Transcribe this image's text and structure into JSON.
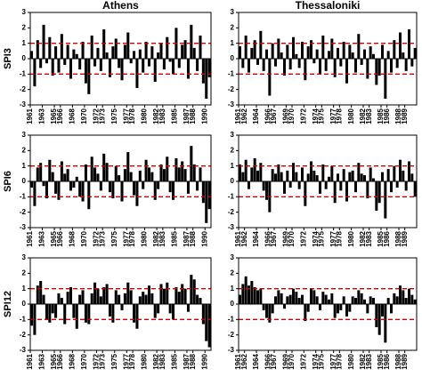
{
  "chart_data": [
    {
      "type": "bar",
      "title": "Athens",
      "ylabel": "SPI3",
      "color": "#000000",
      "thresholds": [
        1,
        -1
      ],
      "threshold_color": "#cc0000",
      "xlim": [
        1961,
        1991
      ],
      "ylim": [
        -3,
        3
      ],
      "yticks": [
        -3,
        -2,
        -1,
        0,
        1,
        2,
        3
      ],
      "xticks": [
        1961,
        1963,
        1965,
        1966,
        1968,
        1970,
        1972,
        1973,
        1975,
        1977,
        1978,
        1980,
        1982,
        1983,
        1985,
        1987,
        1988,
        1990
      ],
      "x": [
        1961,
        1961.5,
        1962,
        1962.5,
        1963,
        1963.5,
        1964,
        1964.5,
        1965,
        1965.5,
        1966,
        1966.5,
        1967,
        1967.5,
        1968,
        1968.5,
        1969,
        1969.5,
        1970,
        1970.5,
        1971,
        1971.5,
        1972,
        1972.5,
        1973,
        1973.5,
        1974,
        1974.5,
        1975,
        1975.5,
        1976,
        1976.5,
        1977,
        1977.5,
        1978,
        1978.5,
        1979,
        1979.5,
        1980,
        1980.5,
        1981,
        1981.5,
        1982,
        1982.5,
        1983,
        1983.5,
        1984,
        1984.5,
        1985,
        1985.5,
        1986,
        1986.5,
        1987,
        1987.5,
        1988,
        1988.5,
        1989,
        1989.5,
        1990,
        1990.5
      ],
      "values": [
        0.5,
        -1.8,
        1.2,
        -0.6,
        2.2,
        -0.3,
        1.4,
        -1.1,
        0.8,
        -0.9,
        1.6,
        -0.4,
        0.9,
        -1.3,
        0.6,
        0.3,
        -0.7,
        1.1,
        -1.6,
        -2.3,
        1.5,
        -0.5,
        0.7,
        -0.8,
        1.9,
        0.4,
        -1.2,
        0.8,
        1.3,
        -0.6,
        -1.4,
        0.9,
        1.7,
        -0.3,
        0.5,
        -1.9,
        0.6,
        -0.9,
        1.1,
        -0.5,
        0.8,
        -1.5,
        0.4,
        1.0,
        -0.7,
        1.4,
        -0.2,
        -1.0,
        2.0,
        -0.6,
        0.9,
        1.2,
        -1.3,
        2.2,
        0.7,
        -0.8,
        1.5,
        -1.6,
        -2.6,
        -1.2
      ]
    },
    {
      "type": "bar",
      "title": "Thessaloniki",
      "color": "#000000",
      "thresholds": [
        1,
        -1
      ],
      "threshold_color": "#cc0000",
      "xlim": [
        1961,
        1991
      ],
      "ylim": [
        -3,
        3
      ],
      "yticks": [
        -3,
        -2,
        -1,
        0,
        1,
        2,
        3
      ],
      "xticks": [
        1961,
        1962,
        1964,
        1966,
        1967,
        1969,
        1970,
        1972,
        1974,
        1975,
        1977,
        1978,
        1980,
        1982,
        1983,
        1985,
        1986,
        1988,
        1989
      ],
      "x": [
        1961,
        1961.5,
        1962,
        1962.5,
        1963,
        1963.5,
        1964,
        1964.5,
        1965,
        1965.5,
        1966,
        1966.5,
        1967,
        1967.5,
        1968,
        1968.5,
        1969,
        1969.5,
        1970,
        1970.5,
        1971,
        1971.5,
        1972,
        1972.5,
        1973,
        1973.5,
        1974,
        1974.5,
        1975,
        1975.5,
        1976,
        1976.5,
        1977,
        1977.5,
        1978,
        1978.5,
        1979,
        1979.5,
        1980,
        1980.5,
        1981,
        1981.5,
        1982,
        1982.5,
        1983,
        1983.5,
        1984,
        1984.5,
        1985,
        1985.5,
        1986,
        1986.5,
        1987,
        1987.5,
        1988,
        1988.5,
        1989,
        1989.5,
        1990,
        1990.5
      ],
      "values": [
        0.8,
        -0.6,
        1.5,
        -0.9,
        0.7,
        1.2,
        -0.4,
        1.8,
        -0.8,
        0.6,
        -2.4,
        1.0,
        -0.5,
        1.3,
        0.4,
        -1.1,
        0.9,
        -0.7,
        1.4,
        0.3,
        -0.6,
        1.1,
        -1.4,
        0.8,
        1.2,
        -0.3,
        0.6,
        -1.0,
        1.5,
        -0.8,
        0.5,
        1.3,
        -1.2,
        0.7,
        -0.5,
        1.1,
        -1.6,
        0.9,
        0.4,
        -0.9,
        1.6,
        -0.4,
        0.6,
        -1.3,
        0.8,
        0.3,
        -1.7,
        -1.1,
        0.9,
        -2.6,
        0.5,
        -0.9,
        1.2,
        -0.6,
        1.7,
        0.4,
        -0.8,
        1.9,
        -0.5,
        0.7
      ]
    },
    {
      "type": "bar",
      "ylabel": "SPI6",
      "color": "#000000",
      "thresholds": [
        1,
        -1
      ],
      "threshold_color": "#cc0000",
      "xlim": [
        1961,
        1991
      ],
      "ylim": [
        -3,
        3
      ],
      "yticks": [
        -3,
        -2,
        -1,
        0,
        1,
        2,
        3
      ],
      "xticks": [
        1961,
        1963,
        1965,
        1966,
        1968,
        1970,
        1972,
        1973,
        1975,
        1977,
        1978,
        1980,
        1982,
        1983,
        1985,
        1987,
        1988,
        1990
      ],
      "x": [
        1961,
        1961.5,
        1962,
        1962.5,
        1963,
        1963.5,
        1964,
        1964.5,
        1965,
        1965.5,
        1966,
        1966.5,
        1967,
        1967.5,
        1968,
        1968.5,
        1969,
        1969.5,
        1970,
        1970.5,
        1971,
        1971.5,
        1972,
        1972.5,
        1973,
        1973.5,
        1974,
        1974.5,
        1975,
        1975.5,
        1976,
        1976.5,
        1977,
        1977.5,
        1978,
        1978.5,
        1979,
        1979.5,
        1980,
        1980.5,
        1981,
        1981.5,
        1982,
        1982.5,
        1983,
        1983.5,
        1984,
        1984.5,
        1985,
        1985.5,
        1986,
        1986.5,
        1987,
        1987.5,
        1988,
        1988.5,
        1989,
        1989.5,
        1990,
        1990.5
      ],
      "values": [
        -0.4,
        -1.6,
        0.9,
        1.2,
        -0.3,
        -1.1,
        1.4,
        0.6,
        -0.8,
        -1.2,
        1.3,
        0.5,
        0.8,
        -0.6,
        -0.4,
        0.3,
        -1.0,
        -1.3,
        1.1,
        -1.8,
        1.6,
        0.9,
        0.5,
        -0.6,
        1.8,
        1.2,
        -0.7,
        -1.1,
        1.0,
        0.4,
        -1.3,
        0.8,
        1.9,
        0.6,
        -0.9,
        -1.6,
        0.7,
        -0.5,
        1.4,
        0.9,
        0.6,
        -1.2,
        -0.5,
        1.1,
        0.8,
        1.6,
        -0.7,
        -1.2,
        1.5,
        0.9,
        1.3,
        0.8,
        -0.8,
        2.3,
        1.1,
        -0.6,
        0.9,
        -1.4,
        -2.7,
        -1.8
      ]
    },
    {
      "type": "bar",
      "color": "#000000",
      "thresholds": [
        1,
        -1
      ],
      "threshold_color": "#cc0000",
      "xlim": [
        1961,
        1991
      ],
      "ylim": [
        -3,
        3
      ],
      "yticks": [
        -3,
        -2,
        -1,
        0,
        1,
        2,
        3
      ],
      "xticks": [
        1961,
        1962,
        1964,
        1966,
        1967,
        1969,
        1970,
        1972,
        1974,
        1975,
        1977,
        1978,
        1980,
        1982,
        1983,
        1985,
        1986,
        1988,
        1989
      ],
      "x": [
        1961,
        1961.5,
        1962,
        1962.5,
        1963,
        1963.5,
        1964,
        1964.5,
        1965,
        1965.5,
        1966,
        1966.5,
        1967,
        1967.5,
        1968,
        1968.5,
        1969,
        1969.5,
        1970,
        1970.5,
        1971,
        1971.5,
        1972,
        1972.5,
        1973,
        1973.5,
        1974,
        1974.5,
        1975,
        1975.5,
        1976,
        1976.5,
        1977,
        1977.5,
        1978,
        1978.5,
        1979,
        1979.5,
        1980,
        1980.5,
        1981,
        1981.5,
        1982,
        1982.5,
        1983,
        1983.5,
        1984,
        1984.5,
        1985,
        1985.5,
        1986,
        1986.5,
        1987,
        1987.5,
        1988,
        1988.5,
        1989,
        1989.5,
        1990,
        1990.5
      ],
      "values": [
        1.1,
        0.6,
        1.4,
        -0.5,
        0.9,
        1.5,
        0.7,
        1.2,
        -0.6,
        -1.2,
        -2.0,
        0.8,
        0.5,
        1.1,
        0.6,
        -0.8,
        0.7,
        -0.4,
        1.2,
        0.6,
        -0.5,
        0.9,
        -1.6,
        0.5,
        1.3,
        0.7,
        0.4,
        -0.8,
        1.1,
        -0.5,
        0.3,
        1.0,
        -1.4,
        0.5,
        -0.6,
        0.8,
        -1.3,
        0.6,
        0.7,
        -0.7,
        1.2,
        0.5,
        0.4,
        -1.1,
        0.9,
        0.2,
        -1.9,
        -1.4,
        0.6,
        -2.4,
        0.8,
        -0.7,
        1.0,
        -0.4,
        1.4,
        0.7,
        -0.6,
        1.3,
        0.5,
        -1.0
      ]
    },
    {
      "type": "bar",
      "ylabel": "SPI12",
      "color": "#000000",
      "thresholds": [
        1,
        -1
      ],
      "threshold_color": "#cc0000",
      "xlim": [
        1961,
        1991
      ],
      "ylim": [
        -3,
        3
      ],
      "yticks": [
        -3,
        -2,
        -1,
        0,
        1,
        2,
        3
      ],
      "xticks": [
        1961,
        1963,
        1965,
        1966,
        1968,
        1970,
        1972,
        1973,
        1975,
        1977,
        1978,
        1980,
        1982,
        1983,
        1985,
        1987,
        1988,
        1990
      ],
      "x": [
        1961,
        1961.5,
        1962,
        1962.5,
        1963,
        1963.5,
        1964,
        1964.5,
        1965,
        1965.5,
        1966,
        1966.5,
        1967,
        1967.5,
        1968,
        1968.5,
        1969,
        1969.5,
        1970,
        1970.5,
        1971,
        1971.5,
        1972,
        1972.5,
        1973,
        1973.5,
        1974,
        1974.5,
        1975,
        1975.5,
        1976,
        1976.5,
        1977,
        1977.5,
        1978,
        1978.5,
        1979,
        1979.5,
        1980,
        1980.5,
        1981,
        1981.5,
        1982,
        1982.5,
        1983,
        1983.5,
        1984,
        1984.5,
        1985,
        1985.5,
        1986,
        1986.5,
        1987,
        1987.5,
        1988,
        1988.5,
        1989,
        1989.5,
        1990,
        1990.5
      ],
      "values": [
        -1.4,
        -2.0,
        1.2,
        1.5,
        0.6,
        -1.0,
        -1.2,
        -0.6,
        -0.9,
        0.7,
        0.4,
        -1.3,
        0.8,
        1.1,
        -0.9,
        -1.6,
        0.6,
        0.9,
        -1.2,
        -1.3,
        0.7,
        1.4,
        1.0,
        0.5,
        1.1,
        1.3,
        -0.8,
        -1.2,
        0.9,
        0.6,
        -0.4,
        0.7,
        1.4,
        0.9,
        -1.2,
        -1.6,
        0.5,
        0.8,
        0.6,
        1.2,
        0.7,
        -0.9,
        -0.6,
        1.3,
        1.0,
        1.4,
        -0.6,
        -1.0,
        1.1,
        0.8,
        1.3,
        1.0,
        -0.5,
        1.9,
        1.6,
        0.6,
        0.4,
        -1.3,
        -2.4,
        -2.8
      ]
    },
    {
      "type": "bar",
      "color": "#000000",
      "thresholds": [
        1,
        -1
      ],
      "threshold_color": "#cc0000",
      "xlim": [
        1961,
        1991
      ],
      "ylim": [
        -3,
        3
      ],
      "yticks": [
        -3,
        -2,
        -1,
        0,
        1,
        2,
        3
      ],
      "xticks": [
        1961,
        1962,
        1964,
        1966,
        1967,
        1969,
        1970,
        1972,
        1974,
        1975,
        1977,
        1978,
        1980,
        1982,
        1983,
        1985,
        1986,
        1988,
        1989
      ],
      "x": [
        1961,
        1961.5,
        1962,
        1962.5,
        1963,
        1963.5,
        1964,
        1964.5,
        1965,
        1965.5,
        1966,
        1966.5,
        1967,
        1967.5,
        1968,
        1968.5,
        1969,
        1969.5,
        1970,
        1970.5,
        1971,
        1971.5,
        1972,
        1972.5,
        1973,
        1973.5,
        1974,
        1974.5,
        1975,
        1975.5,
        1976,
        1976.5,
        1977,
        1977.5,
        1978,
        1978.5,
        1979,
        1979.5,
        1980,
        1980.5,
        1981,
        1981.5,
        1982,
        1982.5,
        1983,
        1983.5,
        1984,
        1984.5,
        1985,
        1985.5,
        1986,
        1986.5,
        1987,
        1987.5,
        1988,
        1988.5,
        1989,
        1989.5,
        1990,
        1990.5
      ],
      "values": [
        0.6,
        1.3,
        1.8,
        1.2,
        1.5,
        1.1,
        0.9,
        1.0,
        -0.4,
        -0.9,
        -1.2,
        -0.6,
        0.5,
        0.9,
        0.7,
        -0.3,
        0.5,
        0.6,
        1.0,
        0.8,
        0.4,
        0.6,
        -1.1,
        -0.5,
        1.0,
        0.9,
        0.5,
        -0.4,
        0.8,
        0.6,
        0.3,
        0.7,
        -0.9,
        -0.6,
        -0.4,
        0.5,
        -0.8,
        -0.5,
        0.5,
        0.4,
        0.9,
        0.7,
        0.3,
        -0.6,
        0.5,
        0.4,
        -1.5,
        -2.0,
        -0.8,
        -2.5,
        0.4,
        -0.6,
        0.7,
        0.5,
        1.2,
        0.9,
        0.4,
        1.0,
        0.6,
        0.3
      ]
    }
  ]
}
